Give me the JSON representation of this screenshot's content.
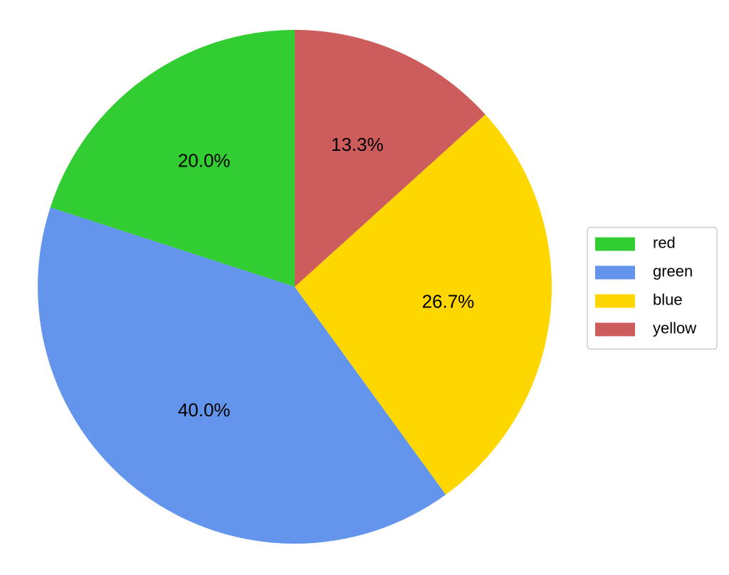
{
  "chart_data": {
    "type": "pie",
    "categories": [
      "red",
      "green",
      "blue",
      "yellow"
    ],
    "values": [
      20,
      40,
      26.7,
      13.3
    ],
    "value_labels": [
      "20.0%",
      "40.0%",
      "26.7%",
      "13.3%"
    ],
    "colors": [
      "#32cd32",
      "#6495ed",
      "#ffd700",
      "#cd5c5c"
    ],
    "start_angle": 90,
    "legend": "center right"
  }
}
